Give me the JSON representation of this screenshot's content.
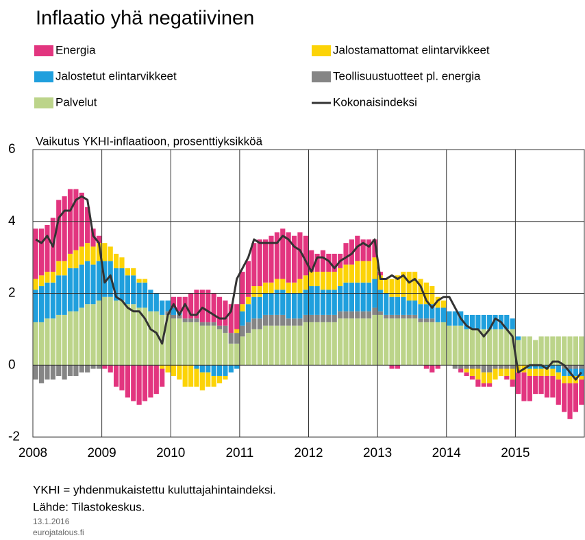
{
  "chart_data": {
    "type": "bar",
    "stacked": true,
    "title": "Inflaatio yhä negatiivinen",
    "ylabel": "Vaikutus YKHI-inflaatioon, prosenttiyksikköä",
    "notes": [
      "YKHI = yhdenmukaistettu  kuluttajahintaindeksi.",
      "Lähde:  Tilastokeskus."
    ],
    "date": "13.1.2016",
    "source": "eurojatalous.fi",
    "categories": [
      "2008",
      null,
      null,
      null,
      null,
      null,
      null,
      null,
      null,
      null,
      null,
      null,
      "2009",
      null,
      null,
      null,
      null,
      null,
      null,
      null,
      null,
      null,
      null,
      null,
      "2010",
      null,
      null,
      null,
      null,
      null,
      null,
      null,
      null,
      null,
      null,
      null,
      "2011",
      null,
      null,
      null,
      null,
      null,
      null,
      null,
      null,
      null,
      null,
      null,
      "2012",
      null,
      null,
      null,
      null,
      null,
      null,
      null,
      null,
      null,
      null,
      null,
      "2013",
      null,
      null,
      null,
      null,
      null,
      null,
      null,
      null,
      null,
      null,
      null,
      "2014",
      null,
      null,
      null,
      null,
      null,
      null,
      null,
      null,
      null,
      null,
      null,
      "2015",
      null,
      null,
      null,
      null,
      null,
      null,
      null,
      null,
      null,
      null,
      null
    ],
    "ylim": [
      -2,
      6
    ],
    "yticks": [
      -2,
      0,
      2,
      4,
      6
    ],
    "grid": true,
    "series": [
      {
        "name": "Energia",
        "color": "#e2357f",
        "values": [
          1.4,
          1.3,
          1.3,
          1.5,
          1.7,
          1.8,
          1.8,
          1.7,
          1.5,
          1.0,
          0.5,
          0.2,
          -0.1,
          -0.2,
          -0.6,
          -0.7,
          -0.9,
          -1.0,
          -1.1,
          -1.0,
          -0.9,
          -0.8,
          -0.5,
          0,
          0.3,
          0.4,
          0.6,
          0.7,
          0.8,
          0.9,
          0.9,
          0.8,
          0.8,
          0.7,
          0.8,
          0.7,
          0.9,
          1.0,
          1.2,
          1.3,
          1.2,
          1.3,
          1.3,
          1.4,
          1.4,
          1.3,
          1.3,
          1.1,
          0.6,
          0.5,
          0.6,
          0.5,
          0.5,
          0.4,
          0.6,
          0.7,
          0.7,
          0.6,
          0.6,
          0.5,
          0.1,
          0,
          -0.1,
          -0.1,
          0,
          0,
          0,
          0,
          -0.1,
          -0.2,
          -0.1,
          0,
          0,
          0,
          -0.1,
          -0.1,
          -0.1,
          -0.2,
          -0.1,
          -0.1,
          0,
          0,
          -0.1,
          -0.2,
          -0.6,
          -0.8,
          -0.7,
          -0.5,
          -0.5,
          -0.6,
          -0.6,
          -0.7,
          -0.8,
          -1.0,
          -0.8,
          -0.7
        ]
      },
      {
        "name": "Jalostamattomat elintarvikkeet",
        "color": "#fcd307",
        "values": [
          0.3,
          0.3,
          0.3,
          0.3,
          0.4,
          0.4,
          0.4,
          0.5,
          0.5,
          0.5,
          0.5,
          0.5,
          0.5,
          0.4,
          0.4,
          0.3,
          0.2,
          0.2,
          0.1,
          0.1,
          0,
          0,
          -0.1,
          -0.2,
          -0.3,
          -0.4,
          -0.6,
          -0.6,
          -0.5,
          -0.5,
          -0.4,
          -0.3,
          -0.2,
          -0.1,
          0,
          0.1,
          0.2,
          0.2,
          0.3,
          0.3,
          0.3,
          0.3,
          0.3,
          0.3,
          0.3,
          0.3,
          0.4,
          0.4,
          0.4,
          0.4,
          0.5,
          0.5,
          0.5,
          0.5,
          0.5,
          0.5,
          0.6,
          0.6,
          0.6,
          0.6,
          0.4,
          0.4,
          0.5,
          0.6,
          0.7,
          0.8,
          0.8,
          0.7,
          0.6,
          0.5,
          0.3,
          0.2,
          0,
          0,
          0,
          -0.1,
          -0.2,
          -0.3,
          -0.3,
          -0.3,
          -0.3,
          -0.2,
          -0.2,
          -0.3,
          -0.2,
          -0.2,
          -0.2,
          -0.2,
          -0.2,
          -0.2,
          -0.2,
          -0.2,
          -0.2,
          -0.2,
          -0.2,
          -0.1
        ]
      },
      {
        "name": "Jalostetut elintarvikkeet",
        "color": "#1f9fdd",
        "values": [
          0.9,
          1.0,
          1.0,
          1.0,
          1.1,
          1.1,
          1.2,
          1.2,
          1.2,
          1.2,
          1.1,
          1.1,
          1.0,
          1.0,
          0.9,
          0.9,
          0.8,
          0.8,
          0.7,
          0.7,
          0.6,
          0.5,
          0.4,
          0.3,
          0.2,
          0.1,
          0,
          0,
          -0.1,
          -0.2,
          -0.2,
          -0.3,
          -0.3,
          -0.3,
          -0.2,
          -0.1,
          0.4,
          0.5,
          0.6,
          0.6,
          0.6,
          0.6,
          0.7,
          0.7,
          0.7,
          0.7,
          0.7,
          0.7,
          0.8,
          0.8,
          0.7,
          0.7,
          0.7,
          0.7,
          0.8,
          0.8,
          0.8,
          0.8,
          0.8,
          0.8,
          0.6,
          0.6,
          0.5,
          0.5,
          0.5,
          0.4,
          0.4,
          0.4,
          0.4,
          0.4,
          0.4,
          0.4,
          0.4,
          0.4,
          0.4,
          0.4,
          0.4,
          0.4,
          0.4,
          0.4,
          0.4,
          0.4,
          0.4,
          0.3,
          0.1,
          0,
          -0.1,
          -0.1,
          -0.1,
          -0.1,
          -0.1,
          -0.2,
          -0.2,
          -0.2,
          -0.2,
          -0.2
        ]
      },
      {
        "name": "Teollisuustuotteet pl. energia",
        "color": "#858585",
        "values": [
          -0.4,
          -0.5,
          -0.4,
          -0.4,
          -0.3,
          -0.4,
          -0.3,
          -0.3,
          -0.2,
          -0.2,
          -0.1,
          -0.1,
          0,
          0,
          0,
          0,
          0,
          0,
          0,
          0,
          0,
          0,
          0,
          0.1,
          0.1,
          0.1,
          0.1,
          0.1,
          0.1,
          0.1,
          0.1,
          0.1,
          0.1,
          0.2,
          0.3,
          0.3,
          0.3,
          0.3,
          0.3,
          0.3,
          0.3,
          0.3,
          0.3,
          0.3,
          0.2,
          0.2,
          0.2,
          0.2,
          0.2,
          0.2,
          0.2,
          0.2,
          0.2,
          0.2,
          0.2,
          0.2,
          0.2,
          0.2,
          0.2,
          0.2,
          0.1,
          0.1,
          0.1,
          0.1,
          0.1,
          0.1,
          0.1,
          0.1,
          0.1,
          0.1,
          0,
          0,
          0,
          -0.1,
          -0.1,
          -0.1,
          -0.1,
          -0.1,
          -0.2,
          -0.2,
          -0.1,
          -0.1,
          -0.1,
          -0.1,
          0,
          0,
          0,
          0,
          0,
          0,
          0,
          0,
          -0.1,
          -0.1,
          -0.1,
          -0.1
        ]
      },
      {
        "name": "Palvelut",
        "color": "#bcd48a",
        "values": [
          1.2,
          1.2,
          1.3,
          1.3,
          1.4,
          1.4,
          1.5,
          1.5,
          1.6,
          1.7,
          1.7,
          1.8,
          1.9,
          1.9,
          1.8,
          1.8,
          1.7,
          1.7,
          1.6,
          1.6,
          1.5,
          1.5,
          1.4,
          1.4,
          1.3,
          1.3,
          1.2,
          1.2,
          1.2,
          1.1,
          1.1,
          1.1,
          1.0,
          0.9,
          0.6,
          0.6,
          0.8,
          0.9,
          1.0,
          1.0,
          1.1,
          1.1,
          1.1,
          1.1,
          1.1,
          1.1,
          1.1,
          1.2,
          1.2,
          1.2,
          1.2,
          1.2,
          1.2,
          1.3,
          1.3,
          1.3,
          1.3,
          1.3,
          1.3,
          1.4,
          1.4,
          1.3,
          1.3,
          1.3,
          1.3,
          1.3,
          1.3,
          1.2,
          1.2,
          1.2,
          1.2,
          1.2,
          1.1,
          1.1,
          1.1,
          1.0,
          1.0,
          1.0,
          1.0,
          1.0,
          1.0,
          1.0,
          1.0,
          1.0,
          0.7,
          0.8,
          0.8,
          0.7,
          0.8,
          0.8,
          0.8,
          0.8,
          0.8,
          0.8,
          0.8,
          0.8
        ]
      },
      {
        "name": "Kokonaisindeksi",
        "type": "line",
        "color": "#333333",
        "values": [
          3.5,
          3.4,
          3.6,
          3.3,
          4.1,
          4.3,
          4.3,
          4.6,
          4.7,
          4.6,
          3.6,
          3.4,
          2.3,
          2.5,
          1.9,
          1.8,
          1.6,
          1.5,
          1.5,
          1.3,
          1.0,
          0.9,
          0.6,
          1.4,
          1.7,
          1.4,
          1.7,
          1.4,
          1.4,
          1.6,
          1.5,
          1.4,
          1.3,
          1.3,
          1.5,
          2.4,
          2.7,
          3.0,
          3.5,
          3.4,
          3.4,
          3.4,
          3.4,
          3.6,
          3.5,
          3.3,
          3.2,
          2.9,
          2.6,
          3.0,
          3.0,
          2.9,
          2.7,
          2.9,
          3.0,
          3.1,
          3.3,
          3.4,
          3.3,
          3.5,
          2.4,
          2.4,
          2.5,
          2.4,
          2.5,
          2.3,
          2.4,
          2.2,
          1.8,
          1.6,
          1.8,
          1.9,
          1.9,
          1.6,
          1.3,
          1.1,
          1.0,
          1.0,
          0.8,
          1.0,
          1.3,
          1.2,
          1.0,
          0.8,
          -0.2,
          -0.1,
          0,
          0,
          0,
          -0.1,
          0.1,
          0.1,
          0,
          -0.2,
          -0.4,
          -0.2
        ]
      }
    ]
  }
}
